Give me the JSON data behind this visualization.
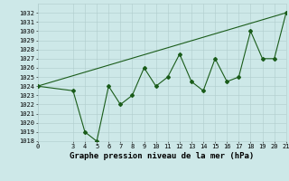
{
  "title": "Graphe pression niveau de la mer (hPa)",
  "x_values": [
    0,
    3,
    4,
    5,
    6,
    7,
    8,
    9,
    10,
    11,
    12,
    13,
    14,
    15,
    16,
    17,
    18,
    19,
    20,
    21
  ],
  "y_values": [
    1024,
    1023.5,
    1019,
    1018,
    1024,
    1022,
    1023,
    1026,
    1024,
    1025,
    1027.5,
    1024.5,
    1023.5,
    1027,
    1024.5,
    1025,
    1030,
    1027,
    1027,
    1032
  ],
  "trend_x": [
    0,
    21
  ],
  "trend_y": [
    1024,
    1032
  ],
  "xlim": [
    0,
    21
  ],
  "ylim": [
    1018,
    1033
  ],
  "yticks": [
    1018,
    1019,
    1020,
    1021,
    1022,
    1023,
    1024,
    1025,
    1026,
    1027,
    1028,
    1029,
    1030,
    1031,
    1032
  ],
  "xticks": [
    0,
    3,
    4,
    5,
    6,
    7,
    8,
    9,
    10,
    11,
    12,
    13,
    14,
    15,
    16,
    17,
    18,
    19,
    20,
    21
  ],
  "line_color": "#1a5c1a",
  "trend_color": "#1a5c1a",
  "bg_color": "#cde8e8",
  "grid_color": "#b0cccc",
  "text_color": "#000000",
  "marker": "D",
  "marker_size": 2,
  "line_width": 0.8,
  "tick_fontsize": 5,
  "xlabel_fontsize": 6.5
}
